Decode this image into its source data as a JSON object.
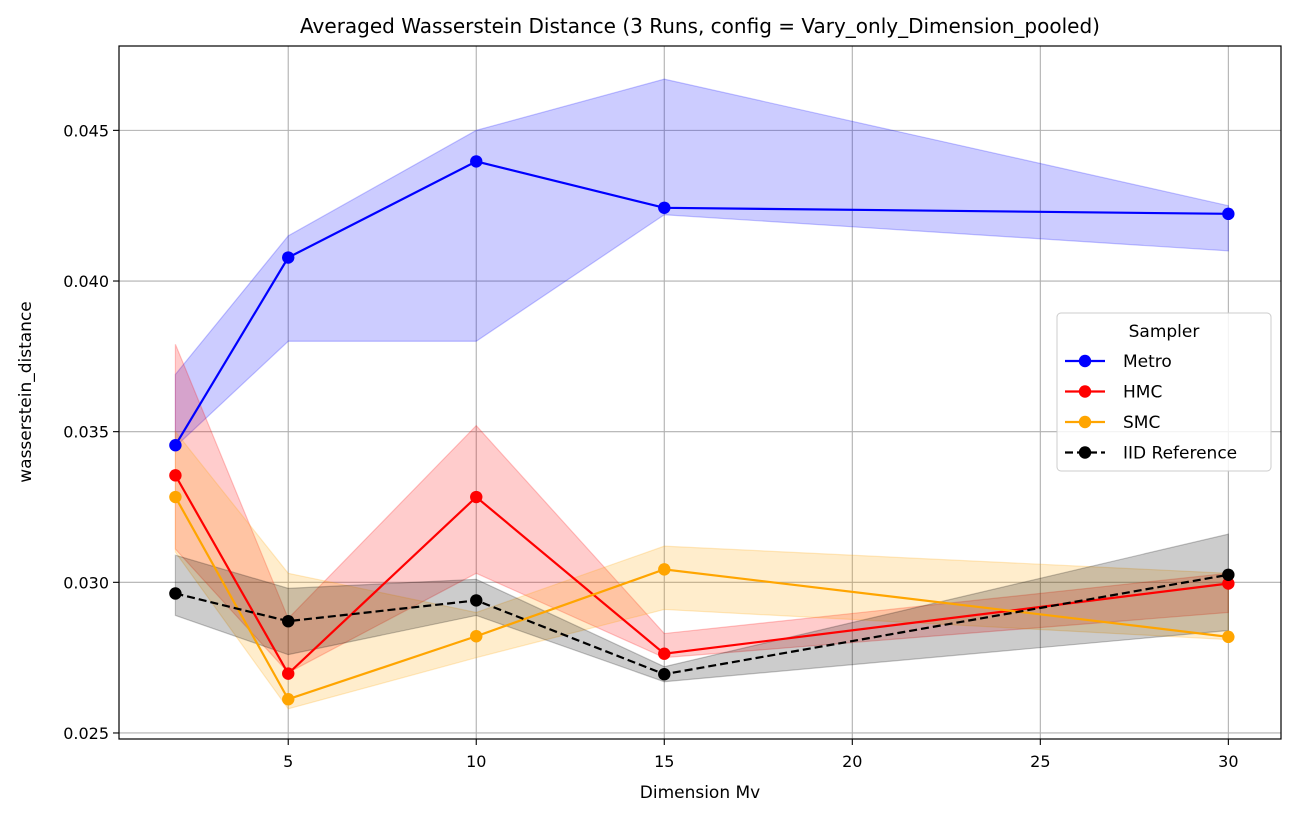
{
  "chart_data": {
    "type": "line",
    "title": "Averaged Wasserstein Distance (3 Runs, config = Vary_only_Dimension_pooled)",
    "xlabel": "Dimension Mv",
    "ylabel": "wasserstein_distance",
    "x": [
      2,
      5,
      10,
      15,
      30
    ],
    "xlim": [
      0.5,
      31.4
    ],
    "ylim": [
      0.0248,
      0.0478
    ],
    "xticks": [
      5,
      10,
      15,
      20,
      25,
      30
    ],
    "yticks": [
      0.025,
      0.03,
      0.035,
      0.04,
      0.045
    ],
    "ytick_labels": [
      "0.025",
      "0.030",
      "0.035",
      "0.040",
      "0.045"
    ],
    "grid": true,
    "legend": {
      "title": "Sampler",
      "placement": "center-right"
    },
    "series": [
      {
        "name": "Metro",
        "color": "#0000ff",
        "linestyle": "solid",
        "values": [
          0.03455,
          0.04078,
          0.04397,
          0.04243,
          0.04223
        ],
        "band_low": [
          0.0345,
          0.038,
          0.038,
          0.0422,
          0.041
        ],
        "band_high": [
          0.0369,
          0.0415,
          0.045,
          0.0467,
          0.0425
        ]
      },
      {
        "name": "HMC",
        "color": "#ff0000",
        "linestyle": "solid",
        "values": [
          0.03355,
          0.02697,
          0.03283,
          0.02763,
          0.02996
        ],
        "band_low": [
          0.0311,
          0.027,
          0.0303,
          0.0275,
          0.029
        ],
        "band_high": [
          0.0379,
          0.0288,
          0.0352,
          0.0283,
          0.0303
        ]
      },
      {
        "name": "SMC",
        "color": "#ffa500",
        "linestyle": "solid",
        "values": [
          0.03283,
          0.02612,
          0.02821,
          0.03043,
          0.02819
        ],
        "band_low": [
          0.031,
          0.0258,
          0.0275,
          0.0291,
          0.0281
        ],
        "band_high": [
          0.035,
          0.0303,
          0.029,
          0.0312,
          0.0303
        ]
      },
      {
        "name": "IID Reference",
        "color": "#000000",
        "linestyle": "dashed",
        "values": [
          0.02963,
          0.02871,
          0.0294,
          0.02695,
          0.03025
        ],
        "band_low": [
          0.0289,
          0.0276,
          0.0289,
          0.0267,
          0.0284
        ],
        "band_high": [
          0.0309,
          0.0298,
          0.0301,
          0.0272,
          0.0316
        ]
      }
    ]
  }
}
